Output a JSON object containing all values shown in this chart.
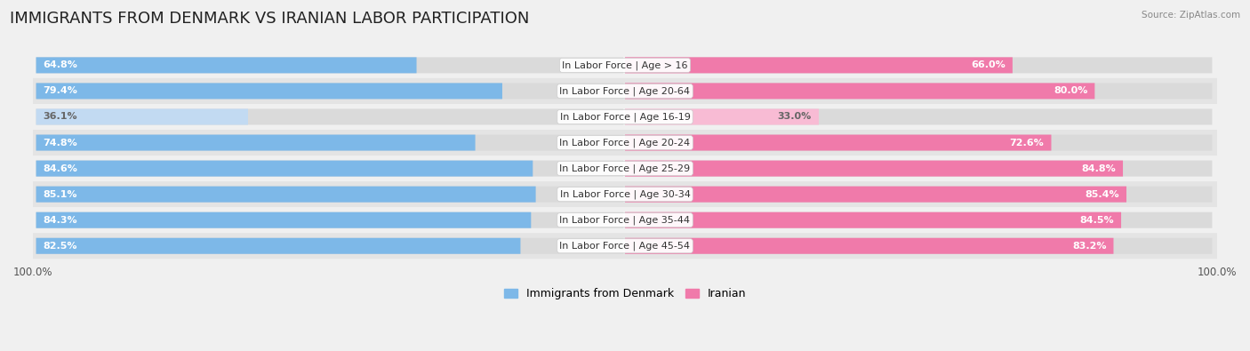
{
  "title": "IMMIGRANTS FROM DENMARK VS IRANIAN LABOR PARTICIPATION",
  "source": "Source: ZipAtlas.com",
  "categories": [
    "In Labor Force | Age > 16",
    "In Labor Force | Age 20-64",
    "In Labor Force | Age 16-19",
    "In Labor Force | Age 20-24",
    "In Labor Force | Age 25-29",
    "In Labor Force | Age 30-34",
    "In Labor Force | Age 35-44",
    "In Labor Force | Age 45-54"
  ],
  "denmark_values": [
    64.8,
    79.4,
    36.1,
    74.8,
    84.6,
    85.1,
    84.3,
    82.5
  ],
  "iranian_values": [
    66.0,
    80.0,
    33.0,
    72.6,
    84.8,
    85.4,
    84.5,
    83.2
  ],
  "denmark_color": "#7db8e8",
  "iranian_color": "#f07aaa",
  "denmark_color_light": "#c2daf2",
  "iranian_color_light": "#f8bbd4",
  "track_color": "#e8e8e8",
  "row_bg_light": "#f0f0f0",
  "row_bg_dark": "#e4e4e4",
  "max_value": 100.0,
  "bar_height": 0.62,
  "background_color": "#f0f0f0",
  "title_fontsize": 13,
  "label_fontsize": 8,
  "value_fontsize": 8,
  "tick_fontsize": 8.5,
  "legend_fontsize": 9,
  "light_threshold": 50.0
}
